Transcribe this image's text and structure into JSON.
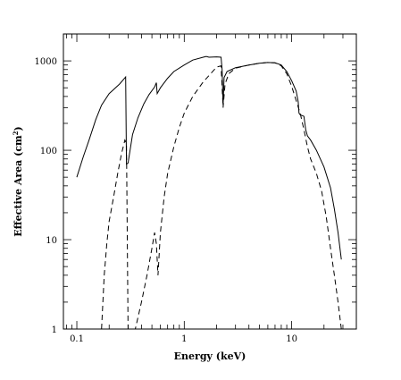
{
  "chart_data": {
    "type": "line",
    "title": "",
    "xlabel": "Energy (keV)",
    "ylabel_main": "Effective Area (cm",
    "ylabel_sup": "2",
    "ylabel_tail": ")",
    "xscale": "log",
    "yscale": "log",
    "xlim": [
      0.075,
      40
    ],
    "ylim": [
      1,
      2000
    ],
    "x_ticks": [
      {
        "value": 0.1,
        "label": "0.1"
      },
      {
        "value": 1,
        "label": "1"
      },
      {
        "value": 10,
        "label": "10"
      }
    ],
    "y_ticks": [
      {
        "value": 1,
        "label": "1"
      },
      {
        "value": 10,
        "label": "10"
      },
      {
        "value": 100,
        "label": "100"
      },
      {
        "value": 1000,
        "label": "1000"
      }
    ],
    "grid": false,
    "legend": "none",
    "series": [
      {
        "style": "solid",
        "points": [
          [
            0.1,
            50
          ],
          [
            0.115,
            85
          ],
          [
            0.13,
            130
          ],
          [
            0.15,
            220
          ],
          [
            0.17,
            320
          ],
          [
            0.2,
            430
          ],
          [
            0.25,
            550
          ],
          [
            0.285,
            660
          ],
          [
            0.29,
            70
          ],
          [
            0.3,
            72
          ],
          [
            0.33,
            150
          ],
          [
            0.37,
            230
          ],
          [
            0.42,
            330
          ],
          [
            0.47,
            420
          ],
          [
            0.53,
            510
          ],
          [
            0.55,
            570
          ],
          [
            0.56,
            430
          ],
          [
            0.6,
            500
          ],
          [
            0.7,
            640
          ],
          [
            0.8,
            760
          ],
          [
            1.0,
            900
          ],
          [
            1.2,
            1020
          ],
          [
            1.5,
            1100
          ],
          [
            1.6,
            1120
          ],
          [
            1.7,
            1100
          ],
          [
            2.0,
            1110
          ],
          [
            2.2,
            1100
          ],
          [
            2.25,
            800
          ],
          [
            2.3,
            320
          ],
          [
            2.35,
            650
          ],
          [
            2.5,
            760
          ],
          [
            3,
            840
          ],
          [
            4,
            900
          ],
          [
            5,
            940
          ],
          [
            6,
            960
          ],
          [
            7,
            950
          ],
          [
            8,
            900
          ],
          [
            9,
            760
          ],
          [
            10,
            600
          ],
          [
            11,
            460
          ],
          [
            11.5,
            350
          ],
          [
            11.7,
            260
          ],
          [
            12,
            250
          ],
          [
            13,
            240
          ],
          [
            13.5,
            170
          ],
          [
            14,
            145
          ],
          [
            15,
            130
          ],
          [
            17,
            100
          ],
          [
            20,
            65
          ],
          [
            23,
            38
          ],
          [
            25,
            22
          ],
          [
            27,
            12
          ],
          [
            29,
            6
          ]
        ]
      },
      {
        "style": "dashed",
        "points": [
          [
            0.17,
            1
          ],
          [
            0.18,
            4
          ],
          [
            0.19,
            9
          ],
          [
            0.2,
            16
          ],
          [
            0.22,
            30
          ],
          [
            0.24,
            55
          ],
          [
            0.26,
            90
          ],
          [
            0.28,
            130
          ],
          [
            0.29,
            120
          ],
          [
            0.3,
            1
          ],
          [
            0.35,
            1
          ],
          [
            0.4,
            2
          ],
          [
            0.45,
            4
          ],
          [
            0.5,
            8
          ],
          [
            0.53,
            12
          ],
          [
            0.55,
            9
          ],
          [
            0.57,
            4
          ],
          [
            0.6,
            12
          ],
          [
            0.65,
            30
          ],
          [
            0.7,
            55
          ],
          [
            0.8,
            110
          ],
          [
            0.9,
            180
          ],
          [
            1.0,
            260
          ],
          [
            1.2,
            400
          ],
          [
            1.5,
            580
          ],
          [
            1.8,
            740
          ],
          [
            2.0,
            850
          ],
          [
            2.2,
            880
          ],
          [
            2.3,
            300
          ],
          [
            2.4,
            550
          ],
          [
            2.6,
            720
          ],
          [
            3,
            830
          ],
          [
            4,
            900
          ],
          [
            5,
            940
          ],
          [
            6,
            960
          ],
          [
            7,
            950
          ],
          [
            8,
            880
          ],
          [
            9,
            720
          ],
          [
            10,
            520
          ],
          [
            11,
            360
          ],
          [
            12,
            260
          ],
          [
            13,
            170
          ],
          [
            14,
            110
          ],
          [
            15,
            80
          ],
          [
            17,
            55
          ],
          [
            19,
            35
          ],
          [
            21,
            18
          ],
          [
            23,
            8
          ],
          [
            25,
            4
          ],
          [
            27,
            2
          ],
          [
            29,
            1
          ]
        ]
      }
    ]
  }
}
